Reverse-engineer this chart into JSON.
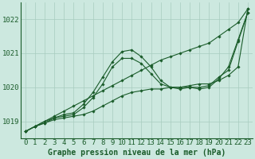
{
  "title": "Graphe pression niveau de la mer (hPa)",
  "background_color": "#cce8df",
  "plot_bg_color": "#cce8df",
  "grid_color": "#a8ccbf",
  "line_color": "#1a5c2a",
  "x": [
    0,
    1,
    2,
    3,
    4,
    5,
    6,
    7,
    8,
    9,
    10,
    11,
    12,
    13,
    14,
    15,
    16,
    17,
    18,
    19,
    20,
    21,
    22,
    23
  ],
  "series1": [
    1018.7,
    1018.85,
    1019.0,
    1019.15,
    1019.3,
    1019.45,
    1019.6,
    1019.75,
    1019.9,
    1020.05,
    1020.2,
    1020.35,
    1020.5,
    1020.65,
    1020.8,
    1020.9,
    1021.0,
    1021.1,
    1021.2,
    1021.3,
    1021.5,
    1021.7,
    1021.9,
    1022.3
  ],
  "series2": [
    1018.7,
    1018.85,
    1018.95,
    1019.05,
    1019.1,
    1019.15,
    1019.2,
    1019.3,
    1019.45,
    1019.6,
    1019.75,
    1019.85,
    1019.9,
    1019.95,
    1019.95,
    1020.0,
    1020.0,
    1020.05,
    1020.1,
    1020.1,
    1020.2,
    1020.35,
    1020.6,
    1022.3
  ],
  "series3": [
    1018.7,
    1018.85,
    1018.95,
    1019.1,
    1019.15,
    1019.2,
    1019.4,
    1019.7,
    1020.1,
    1020.6,
    1020.85,
    1020.85,
    1020.7,
    1020.4,
    1020.1,
    1020.0,
    1020.0,
    1020.0,
    1020.0,
    1020.05,
    1020.3,
    1020.5,
    1021.35,
    1022.2
  ],
  "series4": [
    1018.7,
    1018.85,
    1019.0,
    1019.1,
    1019.2,
    1019.25,
    1019.5,
    1019.85,
    1020.3,
    1020.75,
    1021.05,
    1021.1,
    1020.9,
    1020.6,
    1020.2,
    1020.0,
    1019.95,
    1020.0,
    1019.95,
    1020.0,
    1020.25,
    1020.6,
    1021.4,
    1022.2
  ],
  "ylim": [
    1018.5,
    1022.5
  ],
  "yticks": [
    1019,
    1020,
    1021,
    1022
  ],
  "xlabel_fontsize": 6.5,
  "ylabel_fontsize": 6.5,
  "title_fontsize": 7,
  "marker": "D",
  "markersize": 1.8,
  "linewidth": 0.8
}
